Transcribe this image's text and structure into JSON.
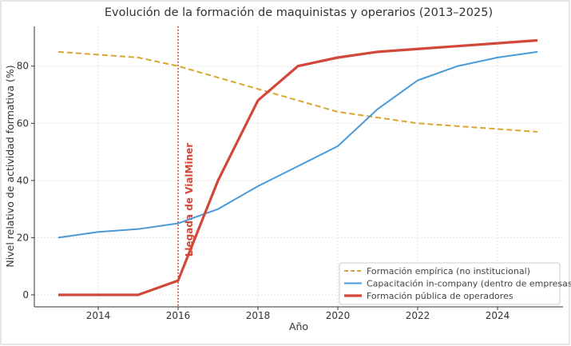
{
  "chart_data": {
    "type": "line",
    "title": "Evolución de la formación de maquinistas y operarios (2013–2025)",
    "xlabel": "Año",
    "ylabel": "Nivel relativo de actividad formativa (%)",
    "xlim": [
      2012.4,
      2025.64
    ],
    "ylim": [
      -4.2,
      93.9
    ],
    "x_ticks": [
      2014,
      2016,
      2018,
      2020,
      2022,
      2024
    ],
    "y_ticks": [
      0,
      20,
      40,
      60,
      80
    ],
    "grid": true,
    "legend_position": "bottom-right",
    "x": [
      2013,
      2014,
      2015,
      2016,
      2017,
      2018,
      2019,
      2020,
      2021,
      2022,
      2023,
      2024,
      2025
    ],
    "series": [
      {
        "name": "Formación empírica (no institucional)",
        "color": "#d9a62e",
        "style": "dashed",
        "values": [
          85,
          84,
          83,
          80,
          76,
          72,
          68,
          64,
          62,
          60,
          59,
          58,
          57
        ]
      },
      {
        "name": "Capacitación in-company (dentro de empresas)",
        "color": "#4a9ad8",
        "style": "solid",
        "values": [
          20,
          22,
          23,
          25,
          30,
          38,
          45,
          52,
          65,
          75,
          80,
          83,
          85
        ]
      },
      {
        "name": "Formación pública de operadores",
        "color": "#d2473a",
        "style": "thick",
        "values": [
          0,
          0,
          0,
          5,
          40,
          68,
          80,
          83,
          85,
          86,
          87,
          88,
          89
        ]
      }
    ],
    "annotations": [
      {
        "x": 2016,
        "label": "Llegada de VialMiner",
        "color": "#d2473a",
        "style": "dotted"
      }
    ]
  }
}
